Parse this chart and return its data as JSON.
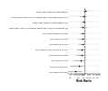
{
  "xlabel": "Risk Ratio",
  "labels": [
    "Every day topical corticosteroid",
    "Cyclosporin topical 0.1% twice daily vehicle/placebo (2)",
    "Every day topical corticosteroid (2)",
    "Once daily vehicle/placebo twice daily vehicle/placebo (2)",
    "Ciclosporin topical 0.05%",
    "Ciclosporin 0.05%",
    "Gl emulsion 0.05%",
    "Ciclosporin oral emulsion 0.05%",
    "Ciclosporin 0.025%",
    "Tacrolimus 0.1%",
    "Tacrolimus 0.03%",
    "Ciclosporin 0.005%"
  ],
  "point_estimates": [
    1.08,
    0.9,
    0.88,
    0.86,
    0.84,
    0.82,
    0.8,
    0.76,
    0.72,
    0.65,
    0.55,
    0.35
  ],
  "lower_ci": [
    0.8,
    0.55,
    0.65,
    0.58,
    0.52,
    0.5,
    0.48,
    0.4,
    0.35,
    0.28,
    0.18,
    0.05
  ],
  "upper_ci": [
    1.4,
    1.3,
    1.15,
    1.2,
    1.18,
    1.18,
    1.15,
    1.12,
    1.1,
    1.05,
    0.95,
    0.75
  ],
  "xticks": [
    0.2,
    0.5,
    1.0,
    1.5,
    2.0,
    3.0,
    5.0
  ],
  "xlog_min": 0.15,
  "xlog_max": 6.0,
  "vline_x": 1.0,
  "point_color": "#000000",
  "line_color": "#888888",
  "bg_color": "#ffffff"
}
